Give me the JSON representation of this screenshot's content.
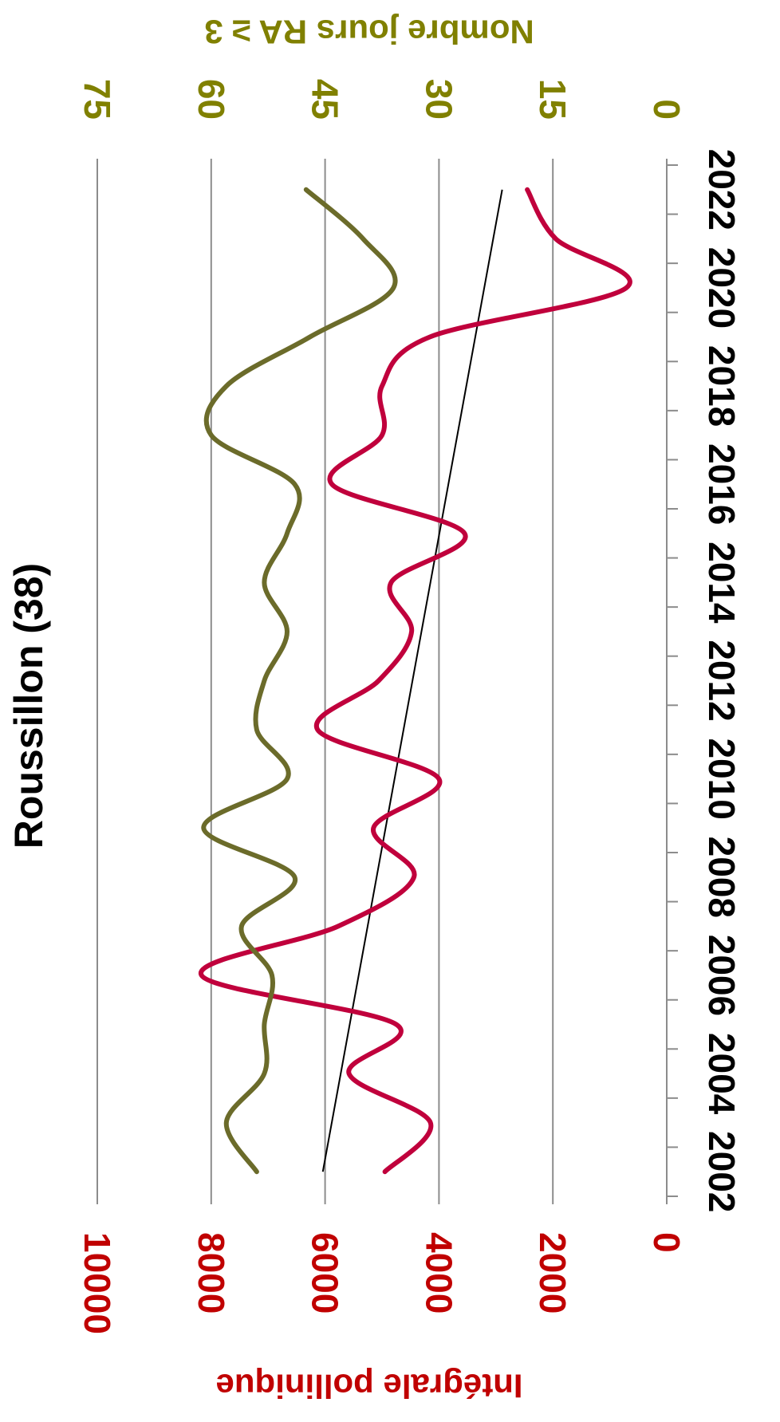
{
  "chart_data": {
    "type": "line",
    "title": "Roussillon (38)",
    "x": [
      2002,
      2003,
      2004,
      2005,
      2006,
      2007,
      2008,
      2009,
      2010,
      2011,
      2012,
      2013,
      2014,
      2015,
      2016,
      2017,
      2018,
      2019,
      2020,
      2021,
      2022
    ],
    "x_ticks": [
      "2002",
      "2004",
      "2006",
      "2008",
      "2010",
      "2012",
      "2014",
      "2016",
      "2018",
      "2020",
      "2022"
    ],
    "xlim": [
      2001.5,
      2022.5
    ],
    "y_left": {
      "label": "Intégrale pollinique",
      "ticks": [
        "0",
        "2000",
        "4000",
        "6000",
        "8000",
        "10000"
      ],
      "lim": [
        0,
        10000
      ],
      "color": "#c00000"
    },
    "y_right": {
      "label": "Nombre jours  RA ≥ 3",
      "ticks": [
        "0",
        "15",
        "30",
        "45",
        "60",
        "75"
      ],
      "lim": [
        0,
        75
      ],
      "color": "#808000"
    },
    "grid": true,
    "series": [
      {
        "axis": "left",
        "color": "#c0003c",
        "values": [
          4950,
          4150,
          5580,
          4750,
          8170,
          5770,
          4440,
          5150,
          4000,
          6130,
          5060,
          4480,
          4840,
          3550,
          5880,
          5000,
          5000,
          4160,
          710,
          1950,
          2450
        ],
        "trend": [
          6040,
          2890
        ]
      },
      {
        "axis": "right",
        "color": "#6b6b2a",
        "values": [
          54,
          58,
          53,
          53,
          52,
          56,
          49,
          61,
          50,
          54,
          53,
          50,
          53,
          50,
          49,
          60,
          58,
          47,
          36,
          40,
          47.5
        ]
      }
    ]
  }
}
